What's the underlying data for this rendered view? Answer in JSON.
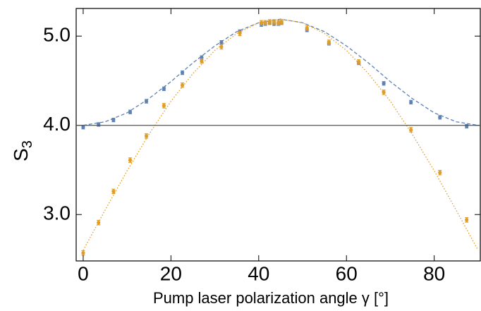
{
  "chart_data": {
    "type": "scatter",
    "xlabel": "Pump laser polarization angle γ [°]",
    "ylabel": {
      "main": "S",
      "sub": "3"
    },
    "xlim": [
      -1.6,
      90.5
    ],
    "ylim": [
      2.48,
      5.31
    ],
    "xticks": [
      0,
      20,
      40,
      60,
      80
    ],
    "yticks": [
      {
        "value": 3.0,
        "label": "3.0"
      },
      {
        "value": 4.0,
        "label": "4.0"
      },
      {
        "value": 5.0,
        "label": "5.0"
      }
    ],
    "hline": 4.0,
    "series": [
      {
        "color": "#5d81b4",
        "error": 0.02,
        "x": [
          0,
          3.5,
          6.9,
          10.7,
          14.4,
          18.4,
          22.6,
          27,
          31.5,
          35.7,
          40.6,
          41.5,
          42.5,
          43.5,
          44.5,
          45.2,
          51,
          56,
          62.8,
          68.5,
          74.7,
          81.3,
          87.4
        ],
        "values": [
          3.98,
          4.01,
          4.06,
          4.15,
          4.27,
          4.41,
          4.59,
          4.76,
          4.93,
          5.05,
          5.13,
          5.14,
          5.15,
          5.14,
          5.14,
          5.15,
          5.07,
          4.92,
          4.7,
          4.47,
          4.26,
          4.09,
          3.99
        ]
      },
      {
        "color": "#e19c24",
        "error": 0.025,
        "x": [
          0,
          3.5,
          6.9,
          10.7,
          14.4,
          18.4,
          22.6,
          27,
          31.5,
          35.7,
          40.6,
          41.5,
          42.5,
          43.5,
          44.5,
          45.2,
          51,
          56,
          62.8,
          68.5,
          74.7,
          81.3,
          87.4
        ],
        "values": [
          2.57,
          2.91,
          3.26,
          3.61,
          3.88,
          4.22,
          4.45,
          4.72,
          4.88,
          5.03,
          5.15,
          5.15,
          5.16,
          5.16,
          5.15,
          5.16,
          5.09,
          4.93,
          4.71,
          4.37,
          3.95,
          3.47,
          2.94
        ]
      }
    ],
    "fits": [
      {
        "color": "#5d81b4",
        "style": "dashed",
        "x": [
          0,
          5,
          10,
          15,
          20,
          25,
          30,
          35,
          40,
          45,
          50,
          55,
          60,
          65,
          70,
          75,
          80,
          85,
          90
        ],
        "values": [
          4.0,
          4.04,
          4.14,
          4.3,
          4.49,
          4.7,
          4.89,
          5.05,
          5.15,
          5.19,
          5.15,
          5.05,
          4.89,
          4.7,
          4.49,
          4.3,
          4.14,
          4.04,
          4.0
        ]
      },
      {
        "color": "#e19c24",
        "style": "dotted",
        "x": [
          0,
          5,
          10,
          15,
          20,
          25,
          30,
          35,
          40,
          45,
          50,
          55,
          60,
          65,
          70,
          75,
          80,
          85,
          90
        ],
        "values": [
          2.6,
          3.05,
          3.49,
          3.9,
          4.27,
          4.58,
          4.84,
          5.03,
          5.15,
          5.19,
          5.15,
          5.03,
          4.84,
          4.58,
          4.27,
          3.9,
          3.49,
          3.05,
          2.6
        ]
      }
    ]
  }
}
